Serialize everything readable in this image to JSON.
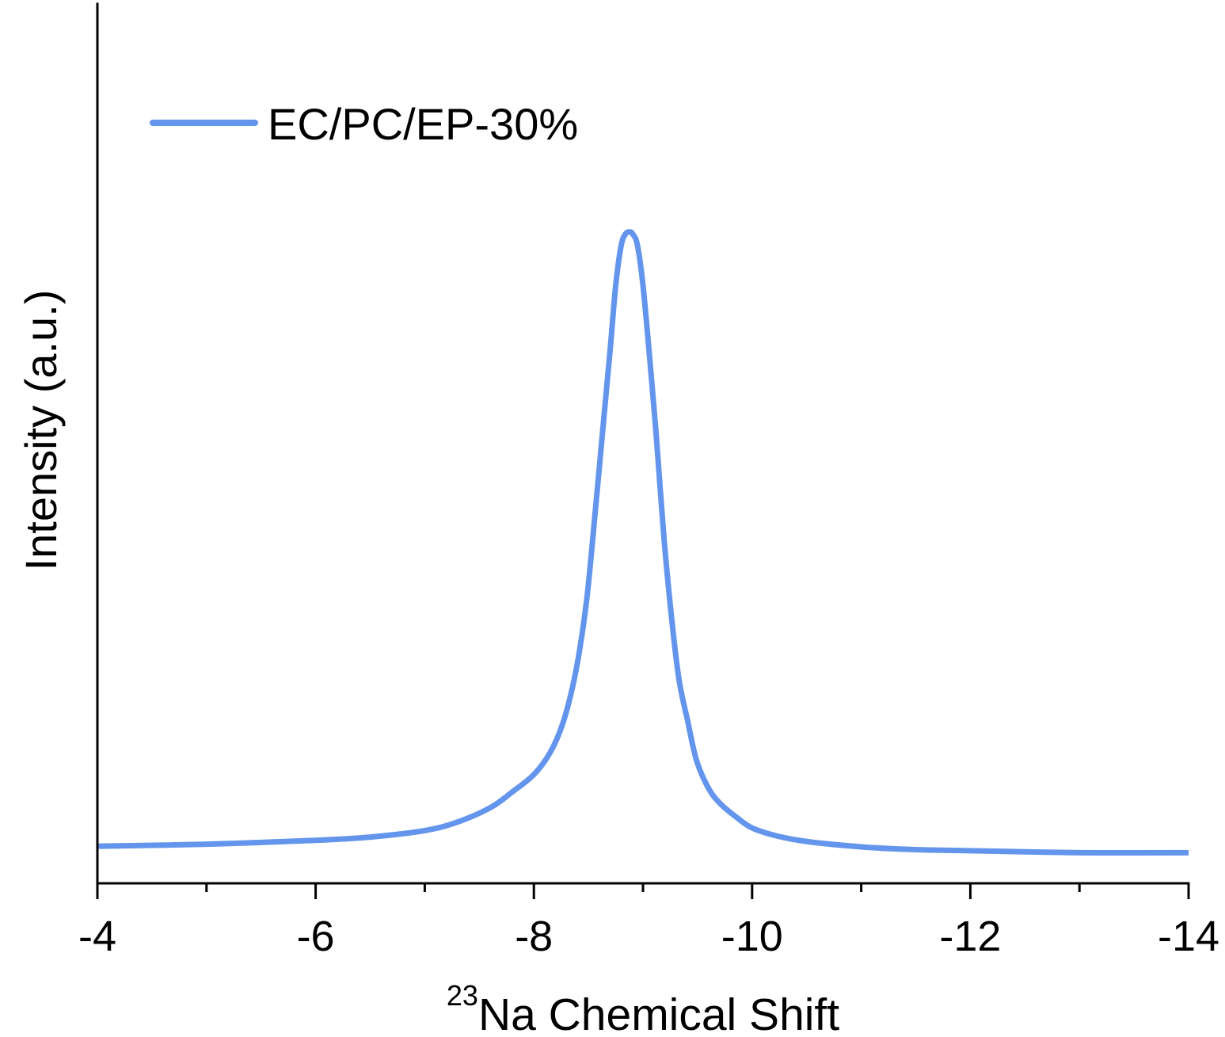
{
  "chart_data": {
    "type": "line",
    "xlabel": {
      "sup": "23",
      "main": "Na Chemical Shift"
    },
    "ylabel": "Intensity (a.u.)",
    "xlim": [
      -4,
      -14
    ],
    "ylim": [
      0,
      135
    ],
    "x_ticks": [
      {
        "value": -4,
        "label": "-4"
      },
      {
        "value": -6,
        "label": "-6"
      },
      {
        "value": -8,
        "label": "-8"
      },
      {
        "value": -10,
        "label": "-10"
      },
      {
        "value": -12,
        "label": "-12"
      },
      {
        "value": -14,
        "label": "-14"
      }
    ],
    "x_minor_ticks": [
      -5,
      -7,
      -9,
      -11,
      -13
    ],
    "y_ticks": [],
    "grid": false,
    "legend": "top-left",
    "series": [
      {
        "name": "EC/PC/EP-30%",
        "color": "#6495ED",
        "x": [
          -4.0,
          -5.0,
          -6.0,
          -6.5,
          -7.0,
          -7.3,
          -7.6,
          -7.8,
          -8.0,
          -8.15,
          -8.26,
          -8.35,
          -8.42,
          -8.49,
          -8.56,
          -8.64,
          -8.7,
          -8.75,
          -8.8,
          -8.84,
          -8.88,
          -8.91,
          -8.95,
          -9.0,
          -9.06,
          -9.12,
          -9.19,
          -9.26,
          -9.33,
          -9.41,
          -9.49,
          -9.6,
          -9.71,
          -9.86,
          -10.0,
          -10.22,
          -10.51,
          -11.0,
          -11.45,
          -12.0,
          -13.0,
          -14.0
        ],
        "y": [
          5.7,
          6.0,
          6.6,
          7.1,
          8.1,
          9.4,
          11.6,
          14.0,
          16.7,
          20.1,
          24.3,
          29.8,
          35.9,
          44.4,
          56.6,
          71.2,
          82.1,
          91.8,
          97.9,
          99.7,
          100.0,
          99.6,
          97.9,
          91.8,
          80.9,
          69.1,
          53.5,
          41.1,
          31.3,
          24.9,
          18.9,
          14.6,
          12.2,
          10.1,
          8.5,
          7.3,
          6.4,
          5.6,
          5.2,
          5.0,
          4.7,
          4.7
        ]
      }
    ]
  }
}
